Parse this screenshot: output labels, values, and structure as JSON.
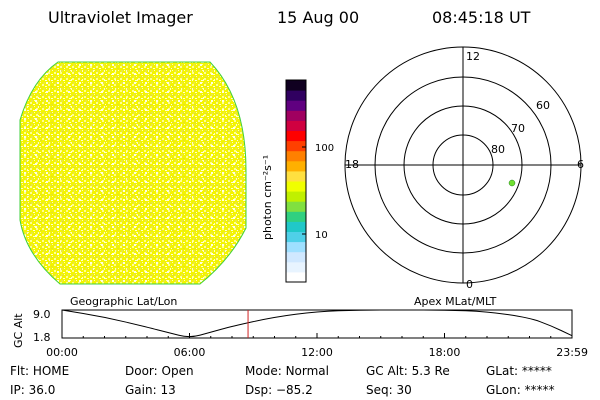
{
  "header": {
    "instrument": "Ultraviolet Imager",
    "date": "15 Aug 00",
    "time": "08:45:18 UT"
  },
  "colorbar": {
    "unit_label": "photon cm⁻²s⁻¹",
    "ticks": [
      "100",
      "10"
    ],
    "colors": [
      "#ffffff",
      "#e8f4ff",
      "#d0e8ff",
      "#9fe0ff",
      "#4fd0e8",
      "#20c8c8",
      "#30d080",
      "#80e040",
      "#c0f000",
      "#f0ff00",
      "#ffe040",
      "#ffb000",
      "#ff8000",
      "#ff4000",
      "#ff0000",
      "#d00040",
      "#a00060",
      "#600080",
      "#300060",
      "#100020"
    ]
  },
  "polar": {
    "top_label": "12",
    "bottom_label": "0",
    "left_label": "18",
    "right_label": "6",
    "ring_labels": [
      "60",
      "70",
      "80"
    ],
    "point_color": "#70e030"
  },
  "altitude_plot": {
    "left_title": "Geographic Lat/Lon",
    "right_title": "Apex MLat/MLT",
    "ylabel": "GC Alt",
    "ymax_label": "9.0",
    "ymin_label": "1.8",
    "x_ticks": [
      "00:00",
      "06:00",
      "12:00",
      "18:00",
      "23:59"
    ],
    "current_time_hours": 8.755,
    "curve_hours": [
      0,
      2,
      4,
      5,
      6,
      7,
      8,
      10,
      12,
      14,
      16,
      18,
      20,
      22,
      23,
      24
    ],
    "curve_alt": [
      9.0,
      7.2,
      4.6,
      3.2,
      1.8,
      3.3,
      4.8,
      7.2,
      8.6,
      9.0,
      9.0,
      9.0,
      8.6,
      7.0,
      5.0,
      2.4
    ],
    "alt_range": [
      1.8,
      9.0
    ]
  },
  "info": {
    "flt_label": "Flt:",
    "flt_value": "HOME",
    "ip_label": "IP:",
    "ip_value": "36.0",
    "door_label": "Door:",
    "door_value": "Open",
    "gain_label": "Gain:",
    "gain_value": "13",
    "mode_label": "Mode:",
    "mode_value": "Normal",
    "dsp_label": "Dsp:",
    "dsp_value": "−85.2",
    "gcalt_label": "GC Alt:",
    "gcalt_value": "5.3 Re",
    "seq_label": "Seq:",
    "seq_value": "30",
    "glat_label": "GLat:",
    "glat_value": "*****",
    "glon_label": "GLon:",
    "glon_value": "*****"
  }
}
